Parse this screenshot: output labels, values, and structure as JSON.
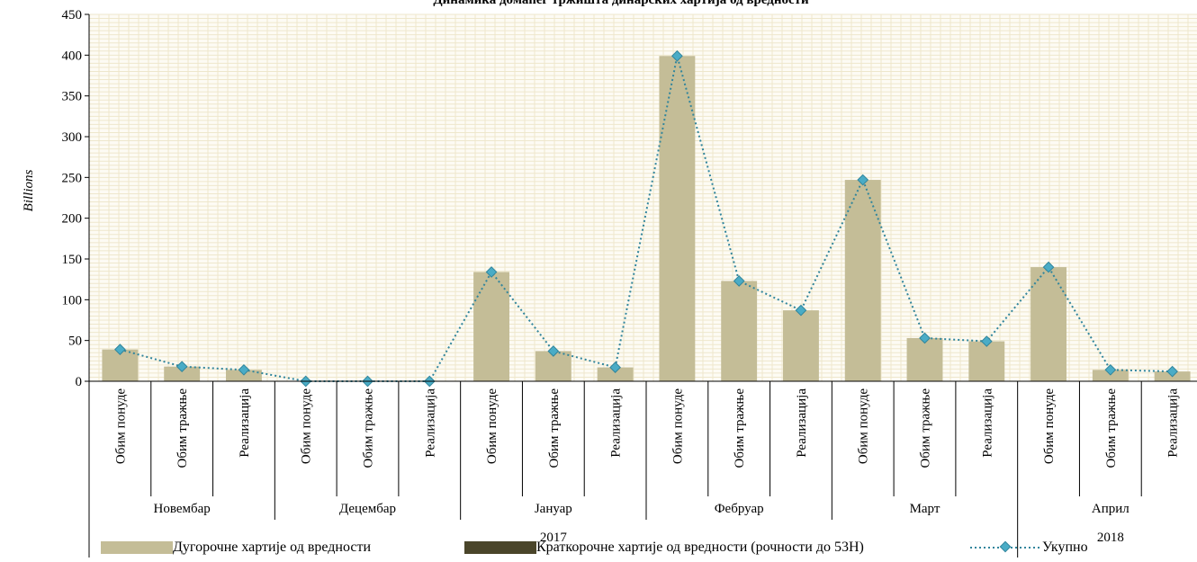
{
  "chart_data": {
    "type": "bar",
    "title": "Динамика домаћег тржишта динарских хартија од вредности",
    "ylabel": "Billions",
    "ylim": [
      0,
      450
    ],
    "yticks": [
      0,
      50,
      100,
      150,
      200,
      250,
      300,
      350,
      400,
      450
    ],
    "grid": true,
    "categories": [
      "Обим понуде",
      "Обим тражње",
      "Реализација",
      "Обим понуде",
      "Обим тражње",
      "Реализација",
      "Обим понуде",
      "Обим тражње",
      "Реализација",
      "Обим понуде",
      "Обим тражње",
      "Реализација",
      "Обим понуде",
      "Обим тражње",
      "Реализација",
      "Обим понуде",
      "Обим тражње",
      "Реализација"
    ],
    "months": [
      "Новембар",
      "Децембар",
      "Јануар",
      "Фебруар",
      "Март",
      "Април"
    ],
    "years": [
      {
        "label": "2017",
        "months": 5
      },
      {
        "label": "2018",
        "months": 1
      }
    ],
    "series": [
      {
        "name": "Дугорочне хартије од вредности",
        "type": "bar",
        "color": "#c4bd97",
        "values": [
          39,
          18,
          14,
          0,
          0,
          0,
          134,
          37,
          17,
          399,
          123,
          87,
          247,
          53,
          49,
          140,
          14,
          12
        ]
      },
      {
        "name": "Краткорочне хартије од вредности (рочности до 53Н)",
        "type": "bar",
        "color": "#4a452a",
        "values": [
          0,
          0,
          0,
          0,
          0,
          0,
          0,
          0,
          0,
          0,
          0,
          0,
          0,
          0,
          0,
          0,
          0,
          0
        ]
      },
      {
        "name": "Укупно",
        "type": "line",
        "color": "#31859c",
        "marker_color": "#4aacc6",
        "values": [
          39,
          18,
          14,
          0,
          0,
          0,
          134,
          37,
          17,
          399,
          123,
          87,
          247,
          53,
          49,
          140,
          14,
          12
        ]
      }
    ],
    "legend_position": "bottom"
  }
}
